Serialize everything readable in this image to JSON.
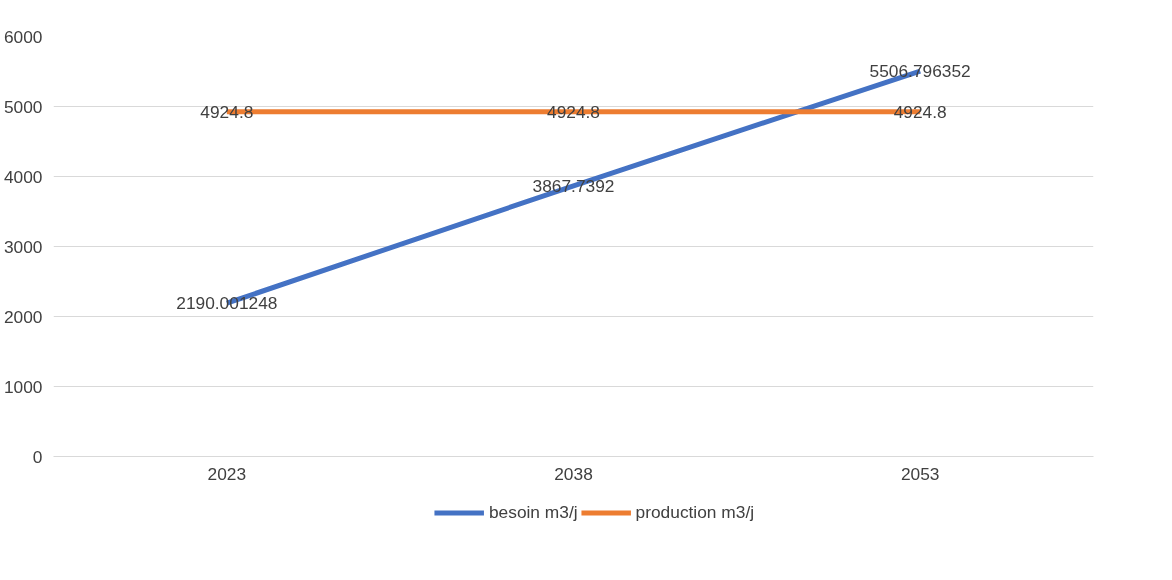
{
  "chart_data": {
    "type": "line",
    "categories": [
      "2023",
      "2038",
      "2053"
    ],
    "series": [
      {
        "name": "besoin m3/j",
        "color": "#4472c4",
        "values": [
          2190.001248,
          3867.7392,
          5506.796352
        ]
      },
      {
        "name": "production m3/j",
        "color": "#ed7d31",
        "values": [
          4924.8,
          4924.8,
          4924.8
        ]
      }
    ],
    "ylim": [
      0,
      6000
    ],
    "yticks": [
      0,
      1000,
      2000,
      3000,
      4000,
      5000,
      6000
    ],
    "grid": "y",
    "legend": "bottom",
    "data_labels": true,
    "marker": "none",
    "line_style": "solid"
  }
}
